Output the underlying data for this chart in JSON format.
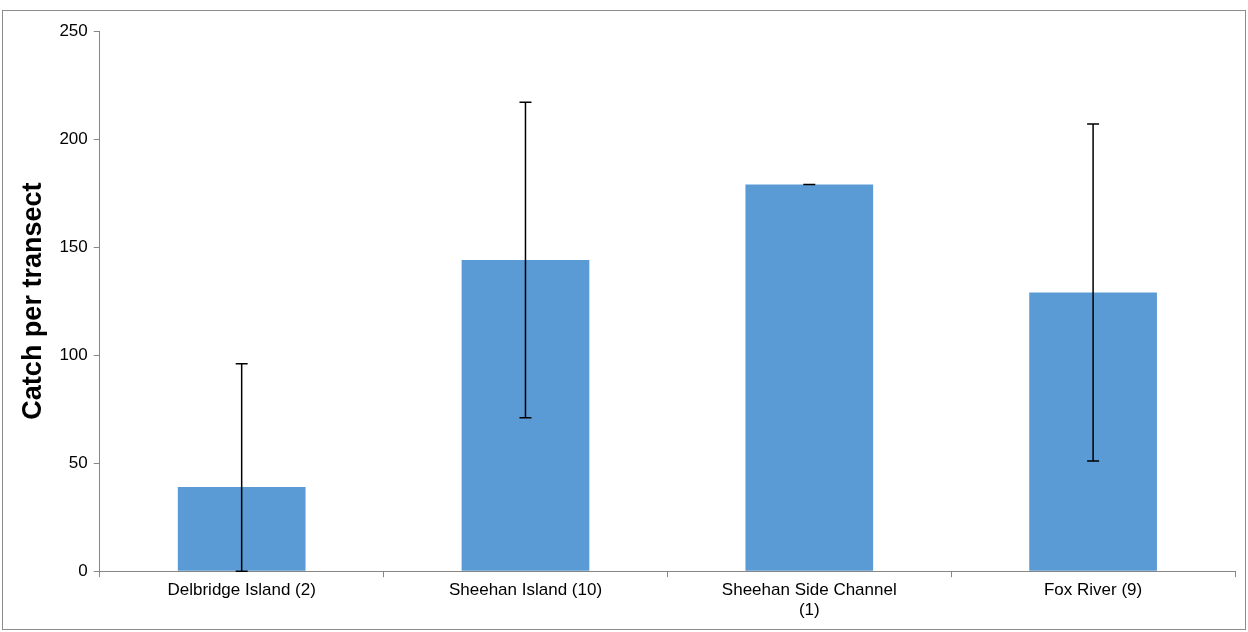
{
  "chart_data": {
    "type": "bar",
    "ylabel": "Catch per transect",
    "categories": [
      "Delbridge Island (2)",
      "Sheehan Island (10)",
      "Sheehan Side Channel (1)",
      "Fox River (9)"
    ],
    "values": [
      39,
      144,
      179,
      129
    ],
    "errors": [
      [
        0,
        96
      ],
      [
        71,
        217
      ],
      [
        179,
        179
      ],
      [
        51,
        207
      ]
    ],
    "color": "#5b9bd5",
    "ylim": [
      0,
      250
    ],
    "yticks": [
      0,
      50,
      100,
      150,
      200,
      250
    ],
    "grid": false,
    "legend": false
  }
}
